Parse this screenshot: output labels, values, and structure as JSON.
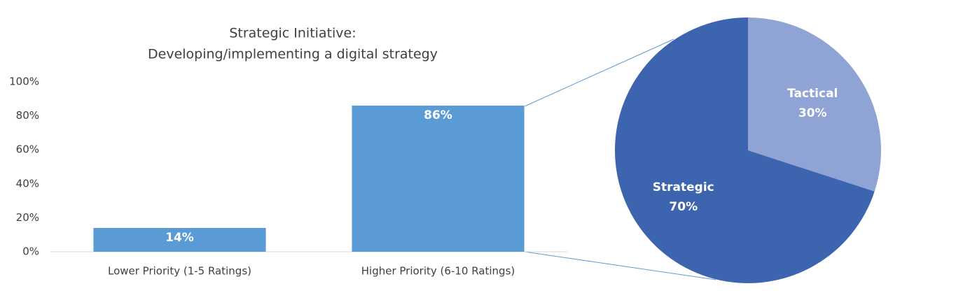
{
  "chart_data": [
    {
      "type": "bar",
      "title": [
        "Strategic Initiative:",
        "Developing/implementing a digital strategy"
      ],
      "categories": [
        "Lower Priority (1-5 Ratings)",
        "Higher Priority (6-10 Ratings)"
      ],
      "values": [
        14,
        86
      ],
      "value_labels": [
        "14%",
        "86%"
      ],
      "color": "#5b9bd5",
      "ylim": [
        0,
        100
      ],
      "yticks": [
        {
          "value": 0,
          "label": "0%"
        },
        {
          "value": 20,
          "label": "20%"
        },
        {
          "value": 40,
          "label": "40%"
        },
        {
          "value": 60,
          "label": "60%"
        },
        {
          "value": 80,
          "label": "80%"
        },
        {
          "value": 100,
          "label": "100%"
        }
      ],
      "grid": false
    },
    {
      "type": "pie",
      "categories": [
        "Tactical",
        "Strategic"
      ],
      "values": [
        30,
        70
      ],
      "value_labels": [
        "30%",
        "70%"
      ],
      "colors": [
        "#8fa3d4",
        "#3d64ae"
      ]
    }
  ]
}
